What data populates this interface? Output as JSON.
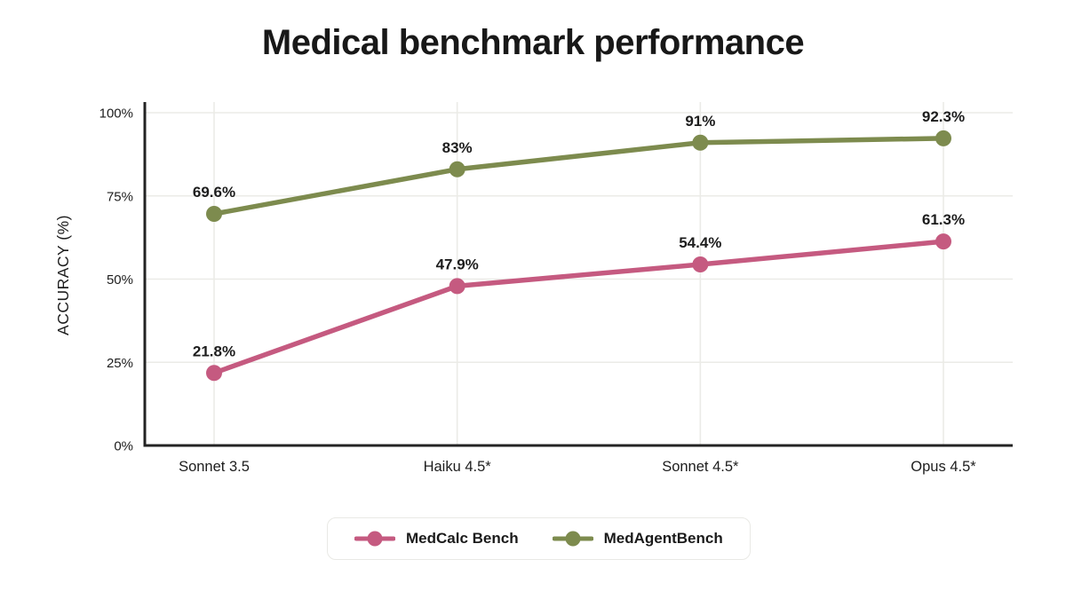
{
  "title": "Medical benchmark performance",
  "colors": {
    "medcalc_pink": "#c55a80",
    "medagent_green": "#7d8b4e",
    "axis": "#232323",
    "gridline": "#ebebe7",
    "text": "#1d1d1d",
    "background": "#ffffff",
    "legend_border": "#e9e9e5"
  },
  "chart_data": {
    "type": "line",
    "title": "Medical benchmark performance",
    "categories": [
      "Sonnet 3.5",
      "Haiku 4.5*",
      "Sonnet 4.5*",
      "Opus 4.5*"
    ],
    "series": [
      {
        "name": "MedCalc Bench",
        "color": "#c55a80",
        "values": [
          21.8,
          47.9,
          54.4,
          61.3
        ],
        "point_labels": [
          "21.8%",
          "47.9%",
          "54.4%",
          "61.3%"
        ]
      },
      {
        "name": "MedAgentBench",
        "color": "#7d8b4e",
        "values": [
          69.6,
          83,
          91,
          92.3
        ],
        "point_labels": [
          "69.6%",
          "83%",
          "91%",
          "92.3%"
        ]
      }
    ],
    "xlabel": "",
    "ylabel": "ACCURACY (%)",
    "ylim": [
      0,
      100
    ],
    "yticks": [
      {
        "value": 0,
        "label": "0%"
      },
      {
        "value": 25,
        "label": "25%"
      },
      {
        "value": 50,
        "label": "50%"
      },
      {
        "value": 75,
        "label": "75%"
      },
      {
        "value": 100,
        "label": "100%"
      }
    ],
    "grid": true,
    "legend_position": "bottom"
  },
  "legend": {
    "items": [
      {
        "label": "MedCalc Bench",
        "color": "#c55a80"
      },
      {
        "label": "MedAgentBench",
        "color": "#7d8b4e"
      }
    ]
  }
}
